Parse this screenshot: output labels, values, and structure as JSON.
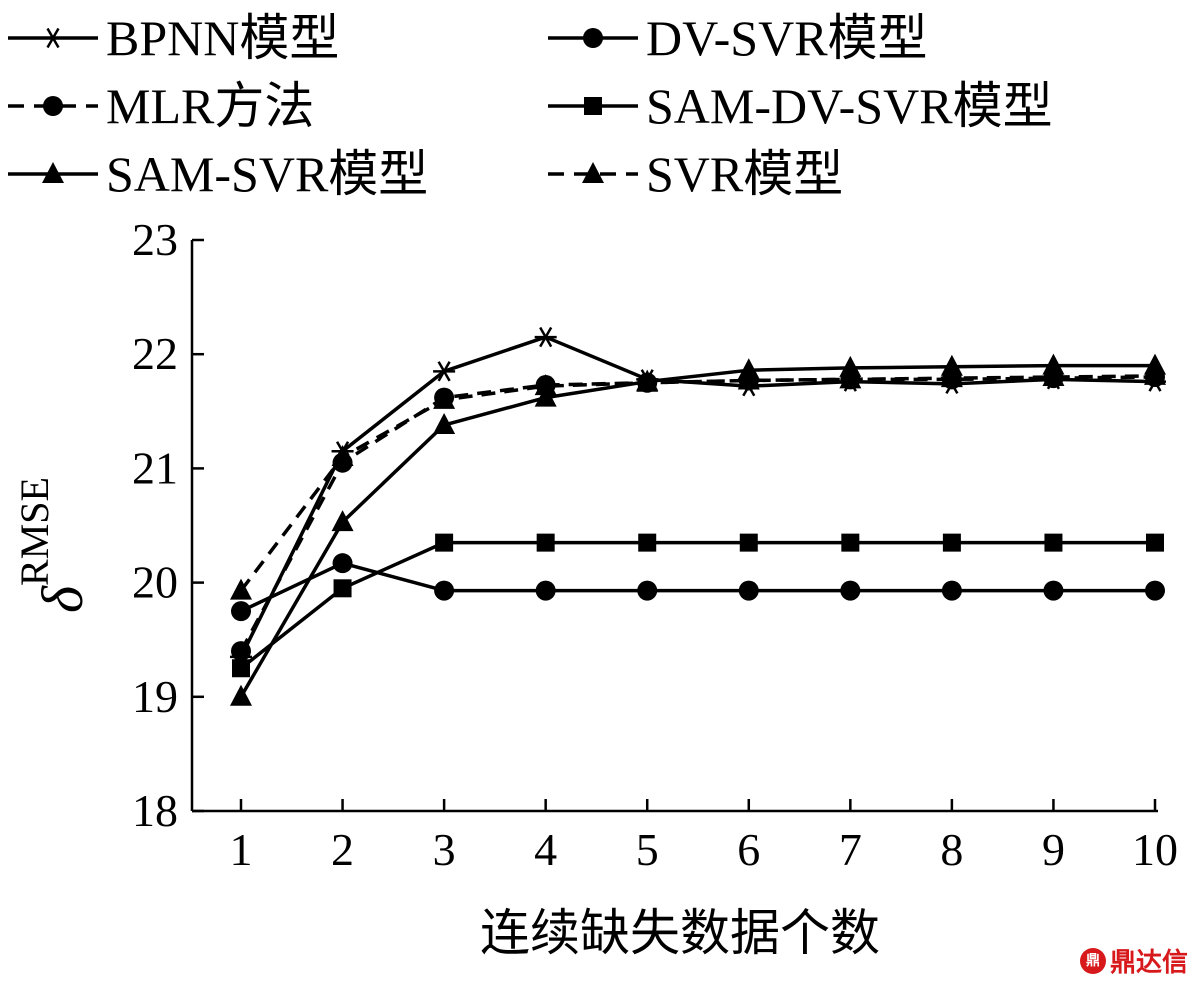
{
  "chart_data": {
    "type": "line",
    "title": "",
    "xlabel": "连续缺失数据个数",
    "ylabel": "δ",
    "ylabel_sub": "RMSE",
    "x": [
      1,
      2,
      3,
      4,
      5,
      6,
      7,
      8,
      9,
      10
    ],
    "xticks": [
      "1",
      "2",
      "3",
      "4",
      "5",
      "6",
      "7",
      "8",
      "9",
      "10"
    ],
    "xlim": [
      0.5,
      10.1
    ],
    "ylim": [
      18,
      23
    ],
    "yticks": [
      "18",
      "19",
      "20",
      "21",
      "22",
      "23"
    ],
    "grid": false,
    "legend_position": "top",
    "series": [
      {
        "name": "BPNN模型",
        "marker": "asterisk",
        "dash": "solid",
        "values": [
          19.35,
          21.15,
          21.85,
          22.15,
          21.78,
          21.72,
          21.76,
          21.74,
          21.78,
          21.76
        ]
      },
      {
        "name": "DV-SVR模型",
        "marker": "circle",
        "dash": "solid",
        "values": [
          19.75,
          20.17,
          19.93,
          19.93,
          19.93,
          19.93,
          19.93,
          19.93,
          19.93,
          19.93
        ]
      },
      {
        "name": "MLR方法",
        "marker": "circle",
        "dash": "dashed",
        "values": [
          19.4,
          21.05,
          21.62,
          21.73,
          21.75,
          21.77,
          21.78,
          21.78,
          21.79,
          21.8
        ]
      },
      {
        "name": "SAM-DV-SVR模型",
        "marker": "square",
        "dash": "solid",
        "values": [
          19.25,
          19.95,
          20.35,
          20.35,
          20.35,
          20.35,
          20.35,
          20.35,
          20.35,
          20.35
        ]
      },
      {
        "name": "SAM-SVR模型",
        "marker": "triangle",
        "dash": "solid",
        "values": [
          19.0,
          20.53,
          21.38,
          21.62,
          21.76,
          21.86,
          21.88,
          21.89,
          21.9,
          21.9
        ]
      },
      {
        "name": "SVR模型",
        "marker": "triangle",
        "dash": "dashed",
        "values": [
          19.93,
          21.1,
          21.6,
          21.72,
          21.75,
          21.77,
          21.78,
          21.79,
          21.8,
          21.81
        ]
      }
    ]
  },
  "watermark": {
    "logo": "鼎",
    "text": "鼎达信"
  }
}
